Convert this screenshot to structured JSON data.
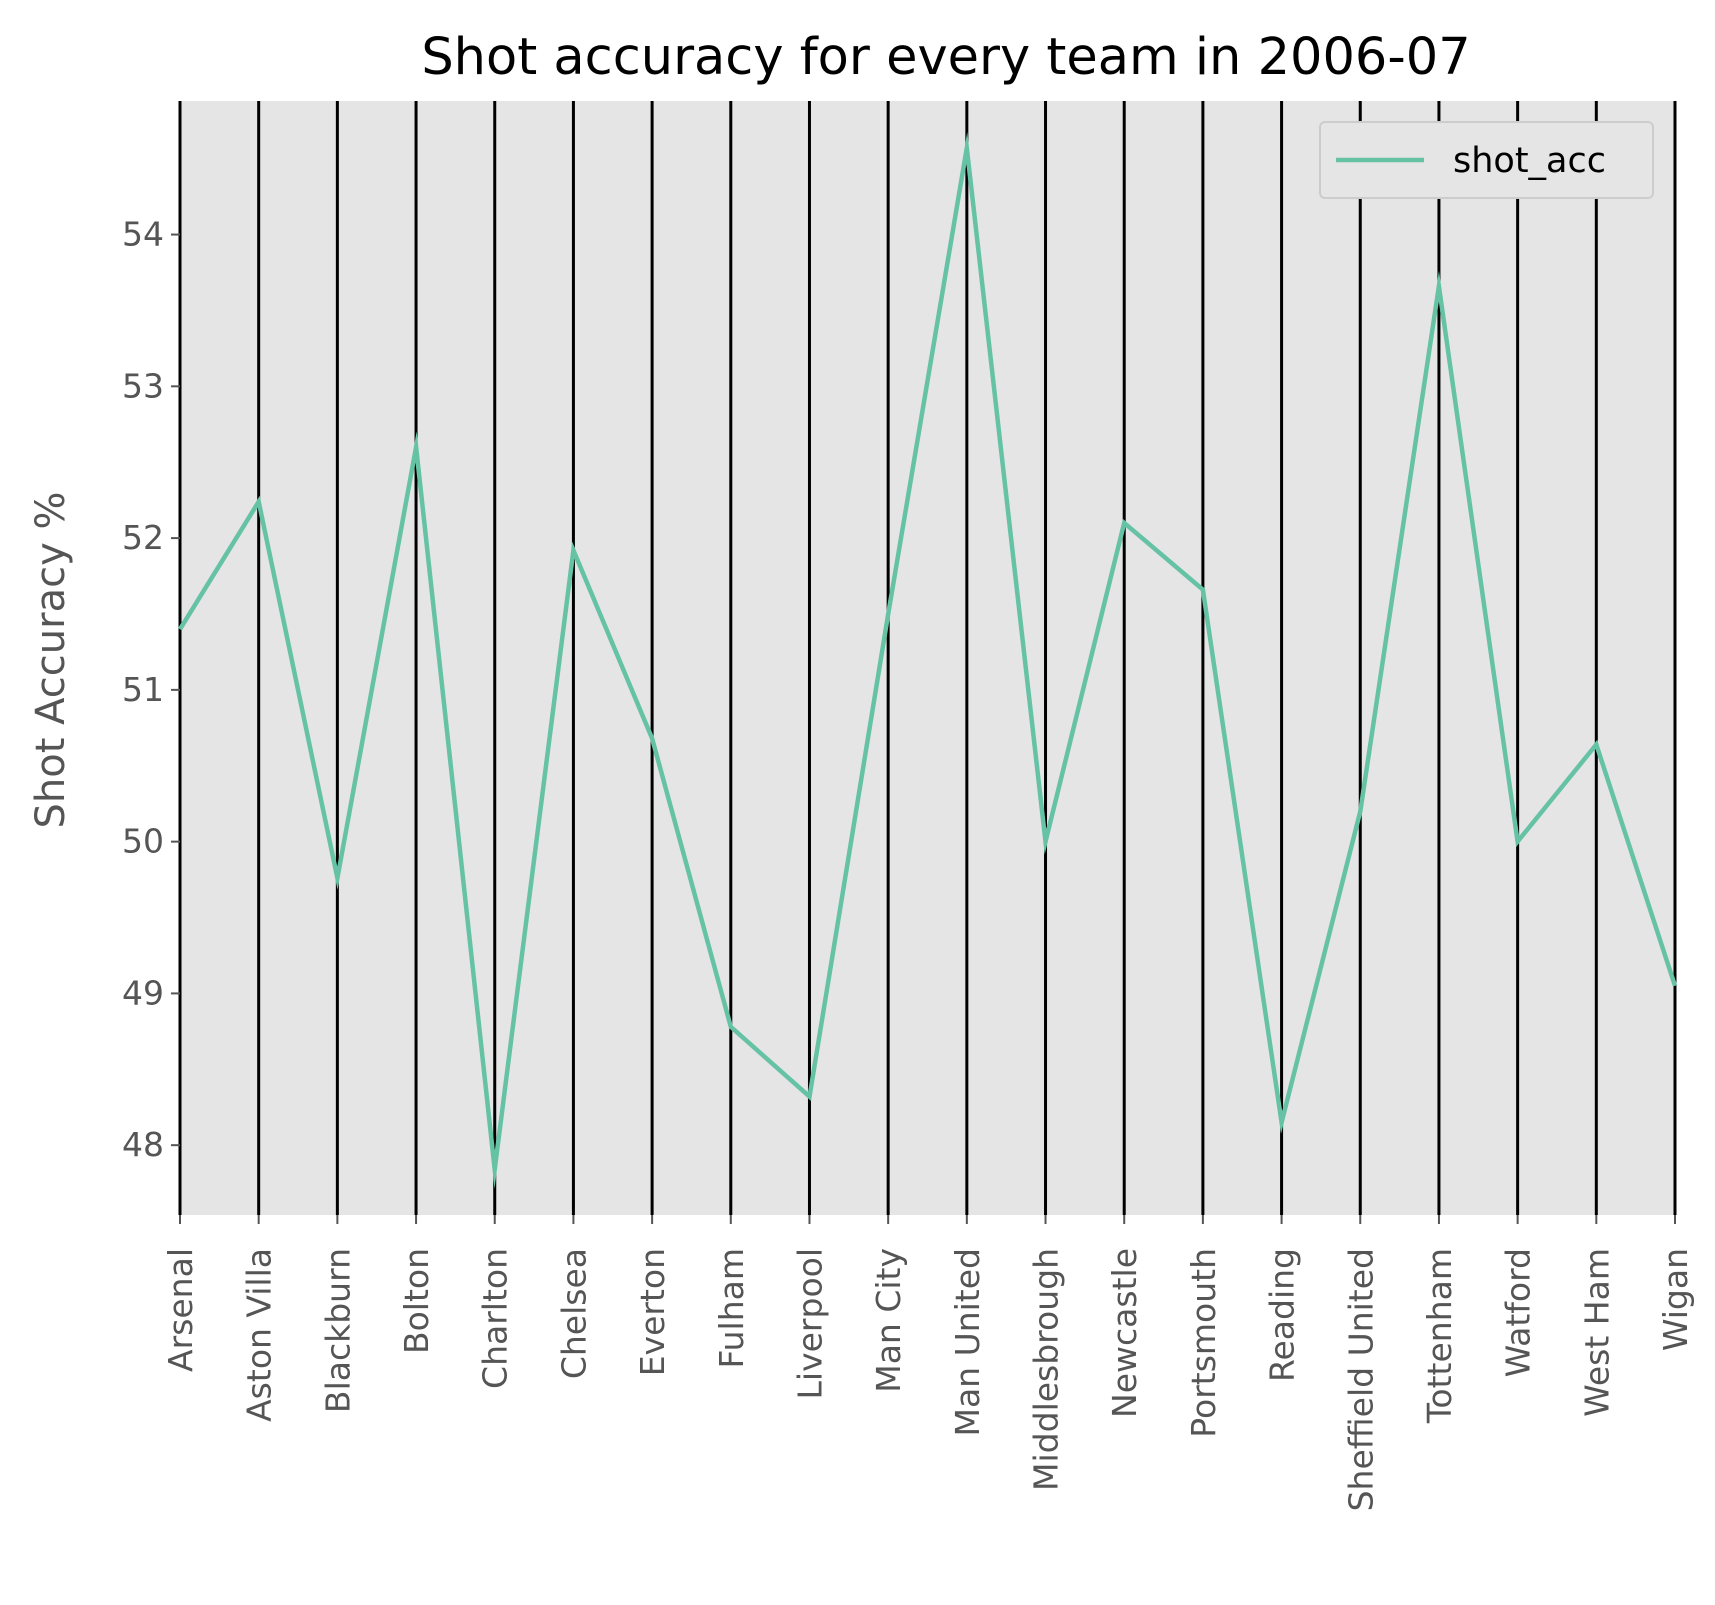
{
  "chart_data": {
    "type": "line",
    "title": "Shot accuracy for every team in 2006-07",
    "xlabel": "",
    "ylabel": "Shot Accuracy %",
    "categories": [
      "Arsenal",
      "Aston Villa",
      "Blackburn",
      "Bolton",
      "Charlton",
      "Chelsea",
      "Everton",
      "Fulham",
      "Liverpool",
      "Man City",
      "Man United",
      "Middlesbrough",
      "Newcastle",
      "Portsmouth",
      "Reading",
      "Sheffield United",
      "Tottenham",
      "Watford",
      "West Ham",
      "Wigan"
    ],
    "series": [
      {
        "name": "shot_acc",
        "color": "#66c2a5",
        "values": [
          51.4,
          52.24,
          49.76,
          52.6,
          47.84,
          51.92,
          50.68,
          48.78,
          48.32,
          51.5,
          54.57,
          50.0,
          52.1,
          51.66,
          48.15,
          50.2,
          53.66,
          50.0,
          50.64,
          49.05
        ]
      }
    ],
    "ylim": [
      47.54,
      54.88
    ],
    "yticks": [
      48,
      49,
      50,
      51,
      52,
      53,
      54
    ],
    "ytick_labels": [
      "48",
      "49",
      "50",
      "51",
      "52",
      "53",
      "54"
    ],
    "grid": true,
    "vertical_lines_at_categories": true,
    "legend": {
      "position": "upper right",
      "entries": [
        "shot_acc"
      ]
    },
    "background_color": "#e5e5e5",
    "vline_color": "#000000"
  }
}
